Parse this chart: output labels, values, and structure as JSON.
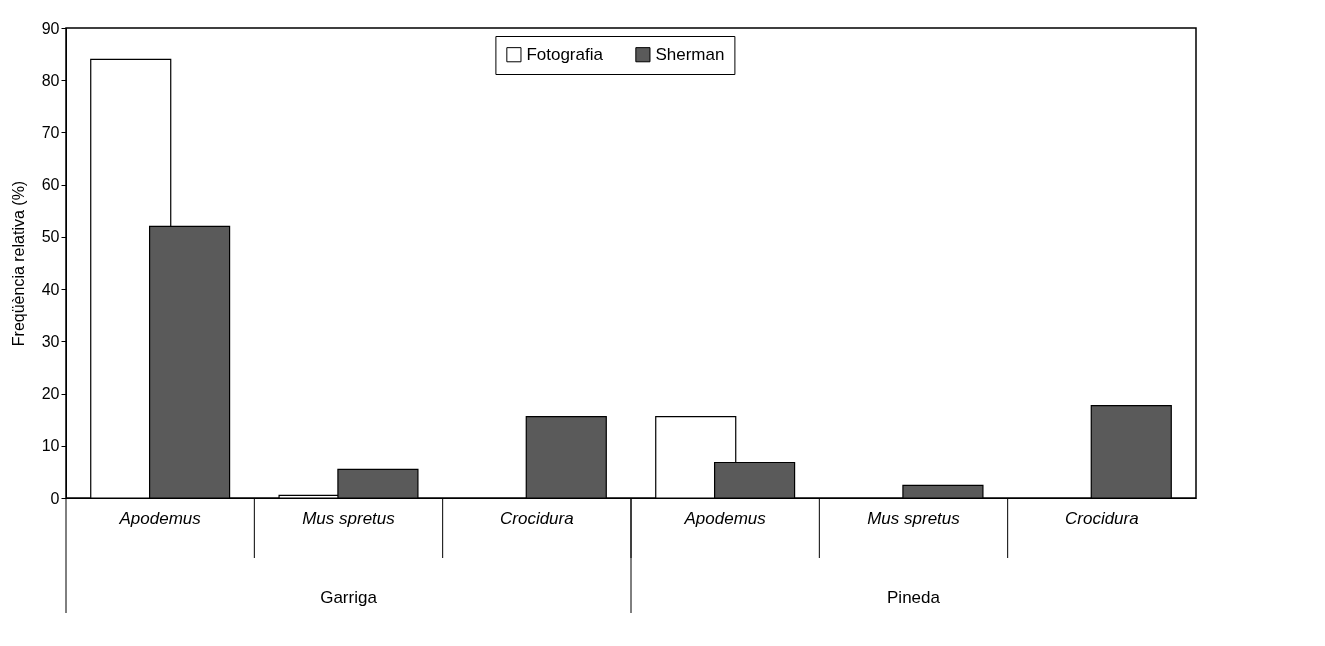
{
  "chart_data": {
    "type": "bar",
    "ylabel": "Freqüència relativa (%)",
    "categories": [
      "Apodemus",
      "Mus spretus",
      "Crocidura",
      "Apodemus",
      "Mus spretus",
      "Crocidura"
    ],
    "series": [
      {
        "name": "Fotografia",
        "color": "#ffffff",
        "values": [
          84,
          0.5,
          null,
          15.6,
          null,
          null
        ]
      },
      {
        "name": "Sherman",
        "color": "#5a5a5a",
        "values": [
          52,
          5.5,
          15.6,
          6.8,
          2.4,
          17.7
        ]
      }
    ],
    "ylim": [
      0,
      90
    ],
    "yticks": [
      0,
      10,
      20,
      30,
      40,
      50,
      60,
      70,
      80,
      90
    ],
    "grid": false,
    "legend": "top",
    "annotations": [
      "Garriga",
      "Pineda"
    ]
  }
}
